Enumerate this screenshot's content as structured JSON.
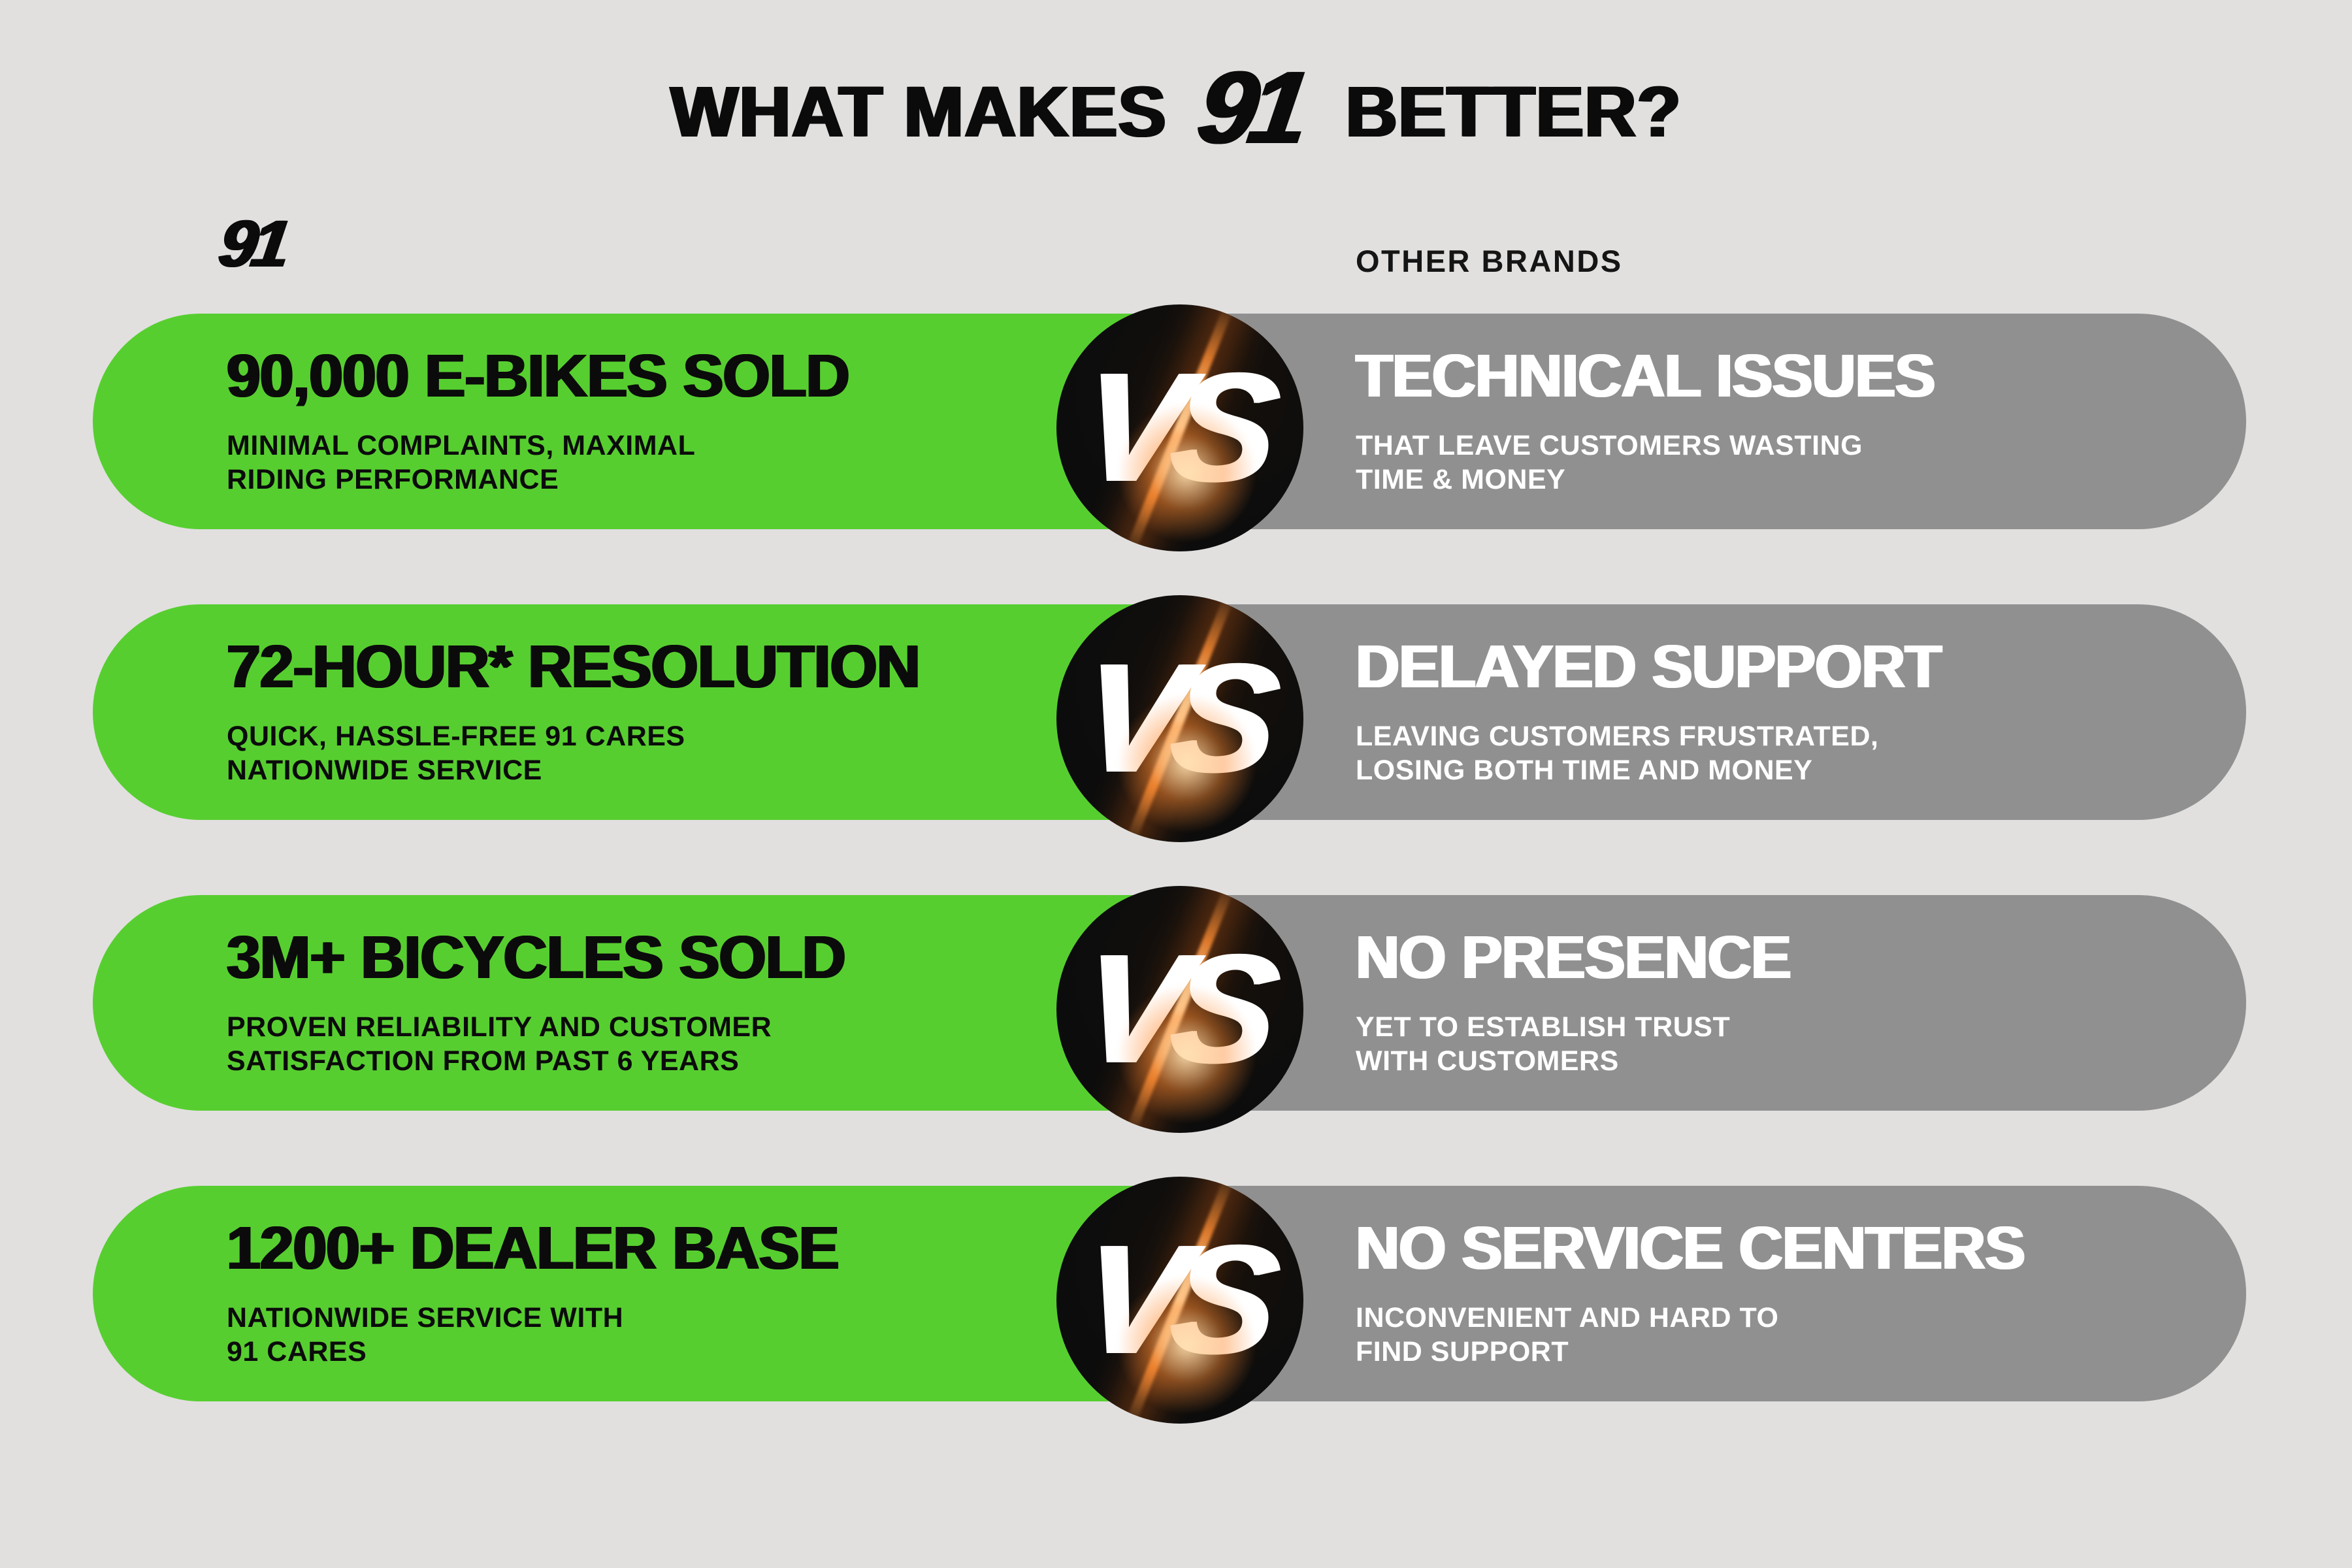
{
  "title": {
    "pre": "WHAT MAKES",
    "logo": "91",
    "post": "BETTER?"
  },
  "columns": {
    "left_label": "91",
    "right_label": "OTHER BRANDS"
  },
  "vs_label": "VS",
  "colors": {
    "background": "#E1E0DF",
    "green": "#57CE30",
    "gray": "#909090",
    "ink": "#0B0B0B",
    "white": "#FFFFFF",
    "flare_orange": "#FF8C33",
    "flare_highlight": "#FFDFAE"
  },
  "rows": [
    {
      "left": {
        "headline": "90,000 E-BIKES SOLD",
        "sub1": "MINIMAL COMPLAINTS, MAXIMAL",
        "sub2": "RIDING PERFORMANCE"
      },
      "right": {
        "headline": "TECHNICAL ISSUES",
        "sub1": "THAT LEAVE CUSTOMERS WASTING",
        "sub2": "TIME & MONEY"
      }
    },
    {
      "left": {
        "headline": "72-HOUR* RESOLUTION",
        "sub1": "QUICK, HASSLE-FREE 91 CARES",
        "sub2": "NATIONWIDE SERVICE"
      },
      "right": {
        "headline": "DELAYED SUPPORT",
        "sub1": "LEAVING CUSTOMERS FRUSTRATED,",
        "sub2": "LOSING BOTH TIME AND MONEY"
      }
    },
    {
      "left": {
        "headline": "3M+ BICYCLES SOLD",
        "sub1": "PROVEN RELIABILITY AND CUSTOMER",
        "sub2": "SATISFACTION FROM PAST 6 YEARS"
      },
      "right": {
        "headline": "NO PRESENCE",
        "sub1": "YET TO ESTABLISH TRUST",
        "sub2": "WITH CUSTOMERS"
      }
    },
    {
      "left": {
        "headline": "1200+ DEALER BASE",
        "sub1": "NATIONWIDE SERVICE WITH",
        "sub2": "91 CARES"
      },
      "right": {
        "headline": "NO SERVICE CENTERS",
        "sub1": "INCONVENIENT AND HARD TO",
        "sub2": "FIND SUPPORT"
      }
    }
  ]
}
